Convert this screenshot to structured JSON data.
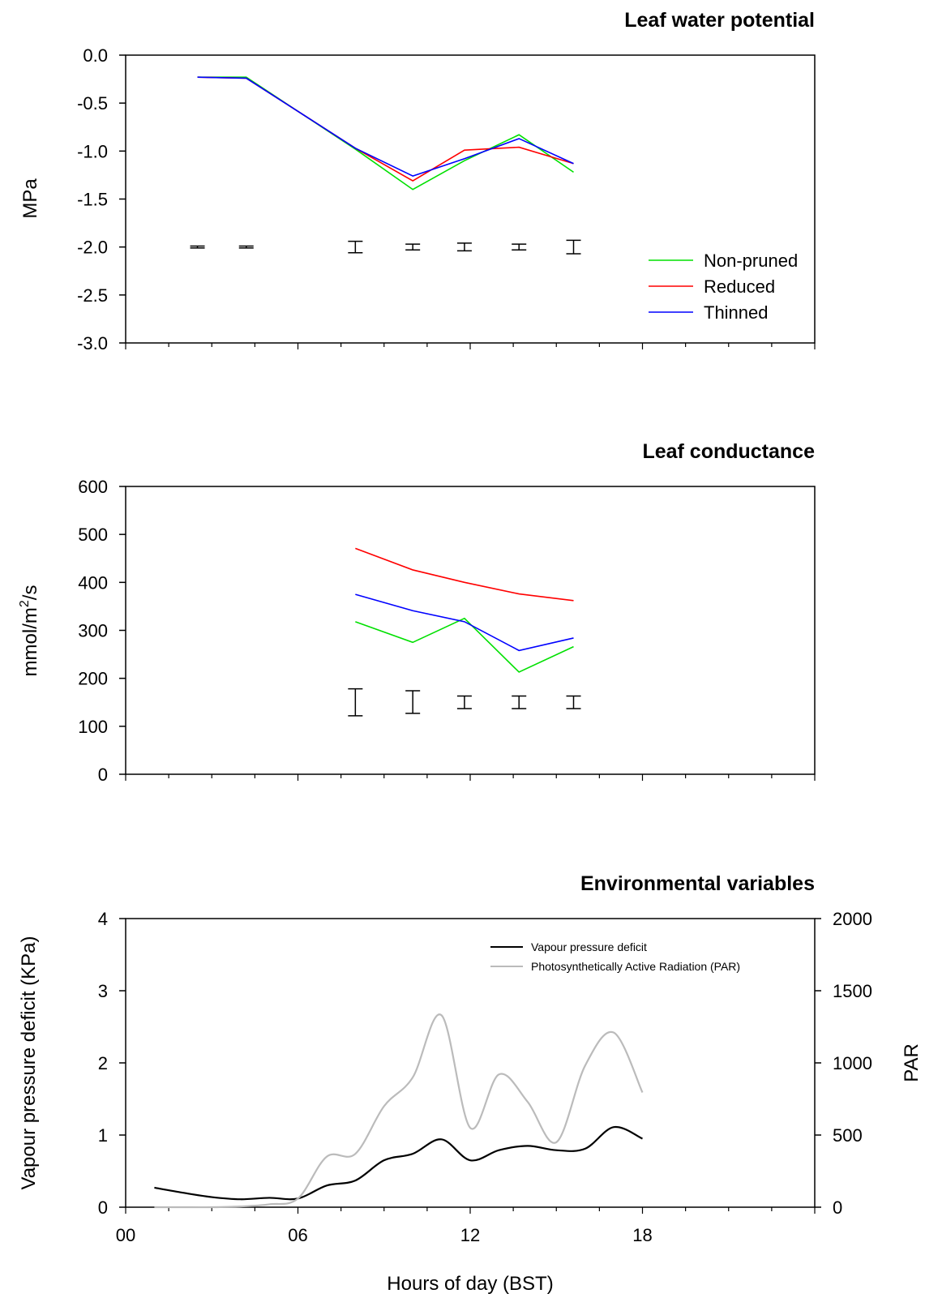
{
  "chart_data": [
    {
      "type": "line",
      "title": "Leaf water potential",
      "ylabel": "MPa",
      "ylim": [
        -3.0,
        0.0
      ],
      "yticks": [
        "0.0",
        "-0.5",
        "-1.0",
        "-1.5",
        "-2.0",
        "-2.5",
        "-3.0"
      ],
      "xlim": [
        0,
        24
      ],
      "x_tick_labels_shown": false,
      "legend": "bottom-right",
      "series": [
        {
          "name": "Non-pruned",
          "color": "#00e000",
          "x": [
            2.5,
            4.2,
            8.0,
            10.0,
            11.8,
            13.7,
            15.6
          ],
          "values": [
            -0.23,
            -0.23,
            -0.98,
            -1.4,
            -1.1,
            -0.83,
            -1.22
          ]
        },
        {
          "name": "Reduced",
          "color": "#ff0000",
          "x": [
            2.5,
            4.2,
            8.0,
            10.0,
            11.8,
            13.7,
            15.6
          ],
          "values": [
            -0.23,
            -0.24,
            -0.97,
            -1.31,
            -0.99,
            -0.96,
            -1.13
          ]
        },
        {
          "name": "Thinned",
          "color": "#0000ff",
          "x": [
            2.5,
            4.2,
            8.0,
            10.0,
            11.8,
            13.7,
            15.6
          ],
          "values": [
            -0.23,
            -0.24,
            -0.97,
            -1.26,
            -1.08,
            -0.87,
            -1.13
          ]
        }
      ],
      "error_bars": {
        "center": -2.0,
        "x": [
          2.5,
          4.2,
          8.0,
          10.0,
          11.8,
          13.7,
          15.6
        ],
        "half_range": [
          0.01,
          0.01,
          0.06,
          0.03,
          0.04,
          0.03,
          0.07
        ]
      }
    },
    {
      "type": "line",
      "title": "Leaf conductance",
      "ylabel_main": "mmol/m",
      "ylabel_sup": "2",
      "ylabel_tail": "/s",
      "ylim": [
        0,
        600
      ],
      "yticks": [
        "0",
        "100",
        "200",
        "300",
        "400",
        "500",
        "600"
      ],
      "xlim": [
        0,
        24
      ],
      "x_tick_labels_shown": false,
      "series": [
        {
          "name": "Non-pruned",
          "color": "#00e000",
          "x": [
            8.0,
            10.0,
            11.8,
            13.7,
            15.6
          ],
          "values": [
            318,
            275,
            325,
            213,
            266
          ]
        },
        {
          "name": "Reduced",
          "color": "#ff0000",
          "x": [
            8.0,
            10.0,
            11.8,
            13.7,
            15.6
          ],
          "values": [
            471,
            426,
            400,
            376,
            362
          ]
        },
        {
          "name": "Thinned",
          "color": "#0000ff",
          "x": [
            8.0,
            10.0,
            11.8,
            13.7,
            15.6
          ],
          "values": [
            375,
            341,
            318,
            258,
            284
          ]
        }
      ],
      "error_bars": [
        {
          "x": 8.0,
          "low": 122,
          "high": 178
        },
        {
          "x": 10.0,
          "low": 127,
          "high": 174
        },
        {
          "x": 11.8,
          "low": 137,
          "high": 163
        },
        {
          "x": 13.7,
          "low": 137,
          "high": 163
        },
        {
          "x": 15.6,
          "low": 137,
          "high": 163
        }
      ]
    },
    {
      "type": "line",
      "title": "Environmental variables",
      "xlabel": "Hours of day (BST)",
      "ylabel": "Vapour pressure deficit (KPa)",
      "ylabel_right": "PAR",
      "xlim": [
        0,
        24
      ],
      "xticks": [
        "00",
        "06",
        "12",
        "18"
      ],
      "ylim": [
        0,
        4
      ],
      "yticks": [
        "0",
        "1",
        "2",
        "3",
        "4"
      ],
      "ylim_right": [
        0,
        2000
      ],
      "yticks_right": [
        "0",
        "500",
        "1000",
        "1500",
        "2000"
      ],
      "legend": "top-right",
      "series": [
        {
          "name": "Vapour pressure deficit",
          "color": "#000000",
          "axis": "left",
          "x": [
            1,
            2,
            3,
            4,
            5,
            6,
            7,
            8,
            9,
            10,
            11,
            12,
            13,
            14,
            15,
            16,
            17,
            18
          ],
          "values": [
            0.27,
            0.2,
            0.14,
            0.11,
            0.13,
            0.12,
            0.3,
            0.37,
            0.65,
            0.74,
            0.94,
            0.65,
            0.79,
            0.85,
            0.79,
            0.81,
            1.11,
            0.95
          ]
        },
        {
          "name": "Photosynthetically Active Radiation (PAR)",
          "color": "#bbbbbb",
          "axis": "right",
          "x": [
            1,
            2,
            3,
            4,
            5,
            6,
            7,
            8,
            9,
            10,
            11,
            12,
            13,
            14,
            15,
            16,
            17,
            18
          ],
          "values": [
            0,
            0,
            0,
            5,
            20,
            60,
            350,
            370,
            700,
            900,
            1330,
            550,
            920,
            730,
            450,
            980,
            1210,
            795
          ]
        }
      ]
    }
  ]
}
